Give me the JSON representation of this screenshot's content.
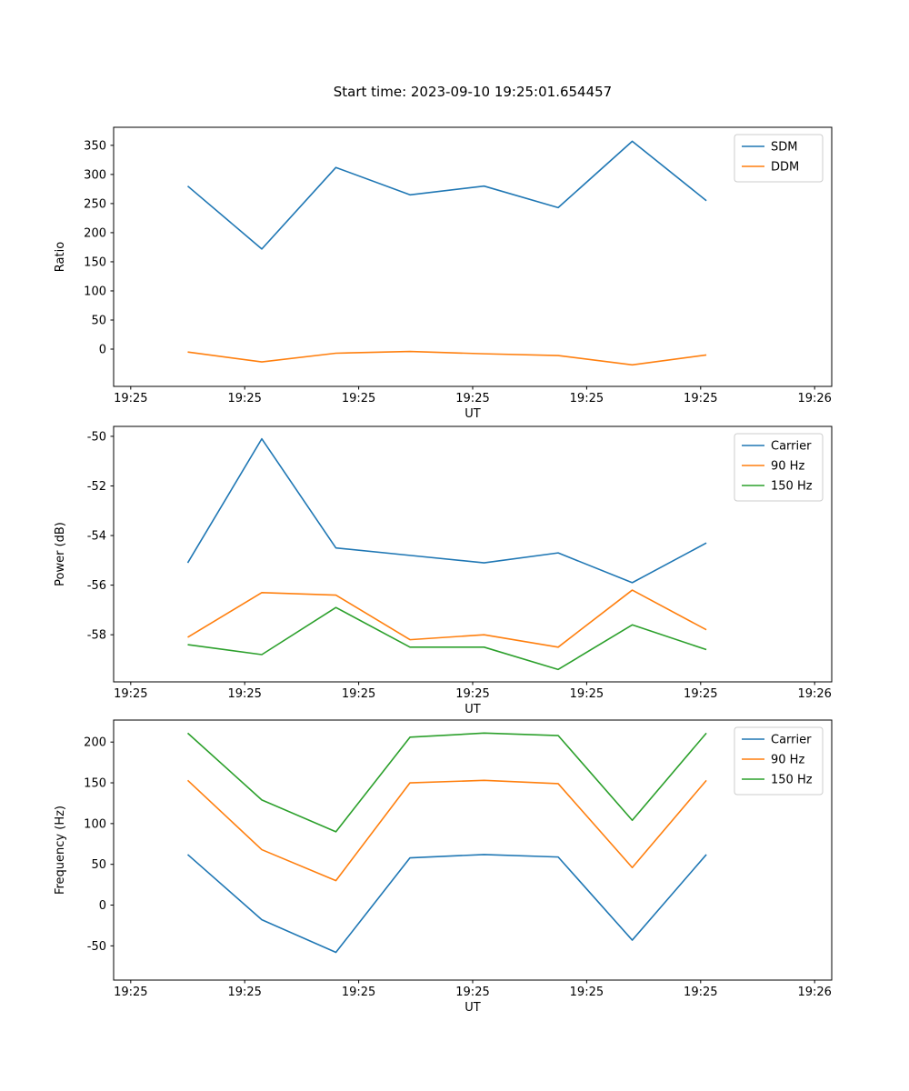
{
  "figure_title": "Start time: 2023-09-10 19:25:01.654457",
  "colors": {
    "blue": "#1f77b4",
    "orange": "#ff7f0e",
    "green": "#2ca02c"
  },
  "chart_data": [
    {
      "type": "line",
      "title": "",
      "xlabel": "UT",
      "ylabel": "Ratio",
      "x_tick_labels": [
        "19:25",
        "19:25",
        "19:25",
        "19:25",
        "19:25",
        "19:25",
        "19:26"
      ],
      "x_tick_values": [
        0,
        10,
        20,
        30,
        40,
        50,
        60
      ],
      "y_ticks": [
        0,
        50,
        100,
        150,
        200,
        250,
        300,
        350
      ],
      "xlim": [
        -1.5,
        61.5
      ],
      "ylim": [
        -64,
        381
      ],
      "grid": false,
      "legend_position": "upper right",
      "x": [
        5,
        11.5,
        18,
        24.5,
        31,
        37.5,
        44,
        50.5
      ],
      "series": [
        {
          "name": "SDM",
          "color": "blue",
          "values": [
            280,
            172,
            312,
            265,
            280,
            243,
            357,
            255
          ]
        },
        {
          "name": "DDM",
          "color": "orange",
          "values": [
            -5,
            -22,
            -7,
            -4,
            -8,
            -11,
            -27,
            -10
          ]
        }
      ]
    },
    {
      "type": "line",
      "title": "",
      "xlabel": "UT",
      "ylabel": "Power (dB)",
      "x_tick_labels": [
        "19:25",
        "19:25",
        "19:25",
        "19:25",
        "19:25",
        "19:25",
        "19:26"
      ],
      "x_tick_values": [
        0,
        10,
        20,
        30,
        40,
        50,
        60
      ],
      "y_ticks": [
        -58,
        -56,
        -54,
        -52,
        -50
      ],
      "xlim": [
        -1.5,
        61.5
      ],
      "ylim": [
        -59.9,
        -49.6
      ],
      "grid": false,
      "legend_position": "upper right",
      "x": [
        5,
        11.5,
        18,
        24.5,
        31,
        37.5,
        44,
        50.5
      ],
      "series": [
        {
          "name": "Carrier",
          "color": "blue",
          "values": [
            -55.1,
            -50.1,
            -54.5,
            -54.8,
            -55.1,
            -54.7,
            -55.9,
            -54.3
          ]
        },
        {
          "name": "90 Hz",
          "color": "orange",
          "values": [
            -58.1,
            -56.3,
            -56.4,
            -58.2,
            -58.0,
            -58.5,
            -56.2,
            -57.8
          ]
        },
        {
          "name": "150 Hz",
          "color": "green",
          "values": [
            -58.4,
            -58.8,
            -56.9,
            -58.5,
            -58.5,
            -59.4,
            -57.6,
            -58.6
          ]
        }
      ]
    },
    {
      "type": "line",
      "title": "",
      "xlabel": "UT",
      "ylabel": "Frequency (Hz)",
      "x_tick_labels": [
        "19:25",
        "19:25",
        "19:25",
        "19:25",
        "19:25",
        "19:25",
        "19:26"
      ],
      "x_tick_values": [
        0,
        10,
        20,
        30,
        40,
        50,
        60
      ],
      "y_ticks": [
        -50,
        0,
        50,
        100,
        150,
        200
      ],
      "xlim": [
        -1.5,
        61.5
      ],
      "ylim": [
        -92,
        227
      ],
      "grid": false,
      "legend_position": "upper right",
      "x": [
        5,
        11.5,
        18,
        24.5,
        31,
        37.5,
        44,
        50.5
      ],
      "series": [
        {
          "name": "Carrier",
          "color": "blue",
          "values": [
            62,
            -18,
            -58,
            58,
            62,
            59,
            -43,
            62
          ]
        },
        {
          "name": "90 Hz",
          "color": "orange",
          "values": [
            153,
            68,
            30,
            150,
            153,
            149,
            46,
            153
          ]
        },
        {
          "name": "150 Hz",
          "color": "green",
          "values": [
            211,
            129,
            90,
            206,
            211,
            208,
            104,
            211
          ]
        }
      ]
    }
  ]
}
